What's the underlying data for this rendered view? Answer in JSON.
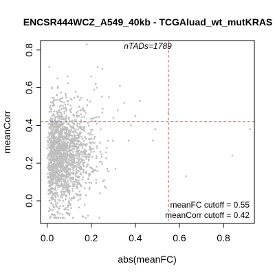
{
  "chart_data": {
    "type": "scatter",
    "title": "ENCSR444WCZ_A549_40kb - TCGAluad_wt_mutKRAS",
    "xlabel": "abs(meanFC)",
    "ylabel": "meanCorr",
    "xlim": [
      -0.03,
      0.94
    ],
    "ylim": [
      -0.12,
      0.85
    ],
    "xticks": [
      0.0,
      0.2,
      0.4,
      0.6,
      0.8
    ],
    "xtick_labels": [
      "0.0",
      "0.2",
      "0.4",
      "0.6",
      "0.8"
    ],
    "yticks": [
      0.0,
      0.2,
      0.4,
      0.6,
      0.8
    ],
    "ytick_labels": [
      "0.0",
      "0.2",
      "0.4",
      "0.6",
      "0.8"
    ],
    "point_color": "#bebebe",
    "cutoff_color": "#e8484f",
    "n_points": 1789,
    "outliers": [
      {
        "x": 0.92,
        "y": 0.38
      },
      {
        "x": 0.84,
        "y": 0.24
      },
      {
        "x": 0.63,
        "y": 0.13
      },
      {
        "x": 0.55,
        "y": 0.47
      },
      {
        "x": 0.49,
        "y": 0.38
      },
      {
        "x": 0.48,
        "y": 0.32
      },
      {
        "x": 0.42,
        "y": 0.53
      },
      {
        "x": 0.4,
        "y": 0.45
      },
      {
        "x": 0.37,
        "y": 0.32
      },
      {
        "x": 0.38,
        "y": 0.4
      },
      {
        "x": 0.35,
        "y": 0.52
      },
      {
        "x": 0.33,
        "y": 0.61
      },
      {
        "x": 0.32,
        "y": 0.48
      },
      {
        "x": 0.31,
        "y": 0.17
      },
      {
        "x": 0.3,
        "y": 0.44
      },
      {
        "x": 0.28,
        "y": 0.55
      },
      {
        "x": 0.27,
        "y": 0.28
      },
      {
        "x": 0.25,
        "y": 0.7
      },
      {
        "x": 0.24,
        "y": 0.04
      },
      {
        "x": 0.23,
        "y": 0.71
      },
      {
        "x": 0.22,
        "y": 0.62
      },
      {
        "x": 0.2,
        "y": 0.66
      },
      {
        "x": 0.18,
        "y": 0.83
      },
      {
        "x": 0.17,
        "y": -0.02
      },
      {
        "x": 0.15,
        "y": 0.01
      },
      {
        "x": 0.02,
        "y": 0.02
      },
      {
        "x": 0.01,
        "y": 0.71
      }
    ],
    "annotations": {
      "ntads": "nTADs=1789",
      "meanfc_cutoff": "meanFC cutoff = 0.55",
      "meancorr_cutoff": "meanCorr cutoff = 0.42"
    },
    "cutoffs": {
      "x": 0.55,
      "y": 0.42
    },
    "grid": false,
    "legend": "none"
  }
}
